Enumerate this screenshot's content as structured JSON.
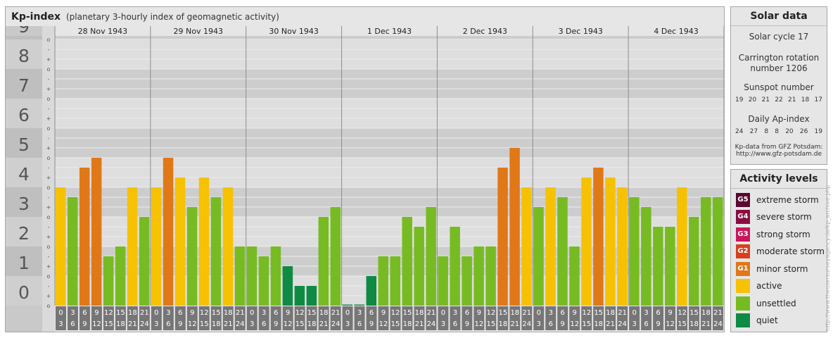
{
  "header": {
    "title": "Kp-index",
    "subtitle": "(planetary 3-hourly index of geomagnetic activity)"
  },
  "chart_data": {
    "type": "bar",
    "y_ticks": [
      "0",
      "1",
      "2",
      "3",
      "4",
      "5",
      "6",
      "7",
      "8",
      "9"
    ],
    "minor_tick_marks": [
      "-",
      "o",
      "+"
    ],
    "days": [
      "28 Nov 1943",
      "29 Nov 1943",
      "30 Nov 1943",
      "1 Dec 1943",
      "2 Dec 1943",
      "3 Dec 1943",
      "4 Dec 1943"
    ],
    "interval_start_hours": [
      "0",
      "3",
      "6",
      "9",
      "12",
      "15",
      "18",
      "21"
    ],
    "interval_end_hours": [
      "3",
      "6",
      "9",
      "12",
      "15",
      "18",
      "21",
      "24"
    ],
    "values": [
      [
        4.0,
        3.667,
        4.667,
        5.0,
        1.667,
        2.0,
        4.0,
        3.0
      ],
      [
        4.0,
        5.0,
        4.333,
        3.333,
        4.333,
        3.667,
        4.0,
        2.0
      ],
      [
        2.0,
        1.667,
        2.0,
        1.333,
        0.667,
        0.667,
        3.0,
        3.333
      ],
      [
        0.0,
        0.0,
        1.0,
        1.667,
        1.667,
        3.0,
        2.667,
        3.333
      ],
      [
        1.667,
        2.667,
        1.667,
        2.0,
        2.0,
        4.667,
        5.333,
        4.0
      ],
      [
        3.333,
        4.0,
        3.667,
        2.0,
        4.333,
        4.667,
        4.333,
        4.0
      ],
      [
        3.667,
        3.333,
        2.667,
        2.667,
        4.0,
        3.0,
        3.667,
        3.667
      ]
    ],
    "ylim": [
      0,
      9.333
    ],
    "grid": true,
    "level_colors": {
      "quiet": "#0e8a45",
      "unsettled": "#77bb22",
      "active": "#f6c200",
      "minor_storm": "#e07818"
    }
  },
  "solar": {
    "title": "Solar data",
    "cycle": "Solar cycle 17",
    "carrington_1": "Carrington rotation",
    "carrington_2": "number 1206",
    "sunspot_title": "Sunspot number",
    "sunspots": [
      "19",
      "20",
      "21",
      "22",
      "21",
      "18",
      "17"
    ],
    "ap_title": "Daily Ap-index",
    "ap": [
      "24",
      "27",
      "8",
      "8",
      "20",
      "26",
      "19"
    ],
    "source_1": "Kp-data from GFZ Potsdam:",
    "source_2": "http://www.gfz-potsdam.de"
  },
  "activity": {
    "title": "Activity levels",
    "items": [
      {
        "code": "G5",
        "label": "extreme storm",
        "color": "#5a0830"
      },
      {
        "code": "G4",
        "label": "severe storm",
        "color": "#8a0d42"
      },
      {
        "code": "G3",
        "label": "strong storm",
        "color": "#c8185a"
      },
      {
        "code": "G2",
        "label": "moderate storm",
        "color": "#d8401c"
      },
      {
        "code": "G1",
        "label": "minor storm",
        "color": "#e07818"
      },
      {
        "code": "",
        "label": "active",
        "color": "#f6c200"
      },
      {
        "code": "",
        "label": "unsettled",
        "color": "#77bb22"
      },
      {
        "code": "",
        "label": "quiet",
        "color": "#0e8a45"
      }
    ]
  },
  "credit": "http://www.theusersurveyagency.de/kp_archive.php"
}
